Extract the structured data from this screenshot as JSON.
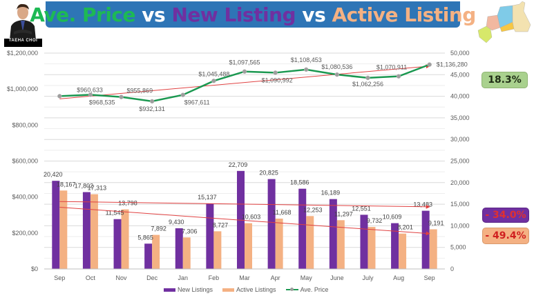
{
  "title": {
    "part1": "Ave. Price",
    "part2": " vs ",
    "part3": "New Listing",
    "part4": " vs ",
    "part5": "Active Listing"
  },
  "logo": {
    "text": "TAEHA CHOI"
  },
  "badges": {
    "price_change": "18.3%",
    "new_listings_change": "- 34.0%",
    "active_listings_change": "- 49.4%"
  },
  "colors": {
    "new_listings": "#7030a0",
    "active_listings": "#f4b183",
    "ave_price": "#1a9850",
    "trendline": "#e04040",
    "title_bg": "#2e75b6"
  },
  "chart_data": {
    "type": "bar",
    "title": "Ave. Price vs New Listing vs Active Listing",
    "categories": [
      "Sep",
      "Oct",
      "Nov",
      "Dec",
      "Jan",
      "Feb",
      "Mar",
      "Apr",
      "May",
      "June",
      "July",
      "Aug",
      "Sep"
    ],
    "series": [
      {
        "name": "New Listings",
        "type": "bar",
        "axis": "right",
        "values": [
          20420,
          17802,
          11545,
          5865,
          9430,
          15137,
          22709,
          20825,
          18586,
          16189,
          12551,
          10609,
          13483
        ],
        "labels": [
          "20,420",
          "17,802",
          "11,545",
          "5,865",
          "9,430",
          "15,137",
          "22,709",
          "20,825",
          "18,586",
          "16,189",
          "12,551",
          "10,609",
          "13,483"
        ]
      },
      {
        "name": "Active Listings",
        "type": "bar",
        "axis": "right",
        "values": [
          18167,
          17313,
          13798,
          7892,
          7306,
          8727,
          10603,
          11668,
          12253,
          11297,
          9732,
          8201,
          9191
        ],
        "labels": [
          "18,167",
          "17,313",
          "13,798",
          "7,892",
          "7,306",
          "8,727",
          "10,603",
          "11,668",
          "12,253",
          "11,297",
          "9,732",
          "8,201",
          "9,191"
        ]
      },
      {
        "name": "Ave. Price",
        "type": "line",
        "axis": "left",
        "values": [
          960633,
          968535,
          955869,
          932131,
          967611,
          1045488,
          1097565,
          1090992,
          1108453,
          1080536,
          1062256,
          1070911,
          1136280
        ],
        "labels": [
          "$960,633",
          "$968,535",
          "$955,869",
          "$932,131",
          "$967,611",
          "$1,045,488",
          "$1,097,565",
          "$1,090,992",
          "$1,108,453",
          "$1,080,536",
          "$1,062,256",
          "$1,070,911",
          "$1,136,280"
        ]
      }
    ],
    "left_axis": {
      "ylim": [
        0,
        1200000
      ],
      "ticks": [
        "$0",
        "$200,000",
        "$400,000",
        "$600,000",
        "$800,000",
        "$1,000,000",
        "$1,200,000"
      ]
    },
    "right_axis": {
      "ylim": [
        0,
        50000
      ],
      "ticks": [
        "0",
        "5,000",
        "10,000",
        "15,000",
        "20,000",
        "25,000",
        "30,000",
        "35,000",
        "40,000",
        "45,000",
        "50,000"
      ]
    },
    "trendlines": [
      "New Listings",
      "Active Listings",
      "Ave. Price"
    ],
    "grid": true,
    "legend": {
      "position": "bottom",
      "entries": [
        "New Listings",
        "Active Listings",
        "Ave. Price"
      ]
    }
  }
}
